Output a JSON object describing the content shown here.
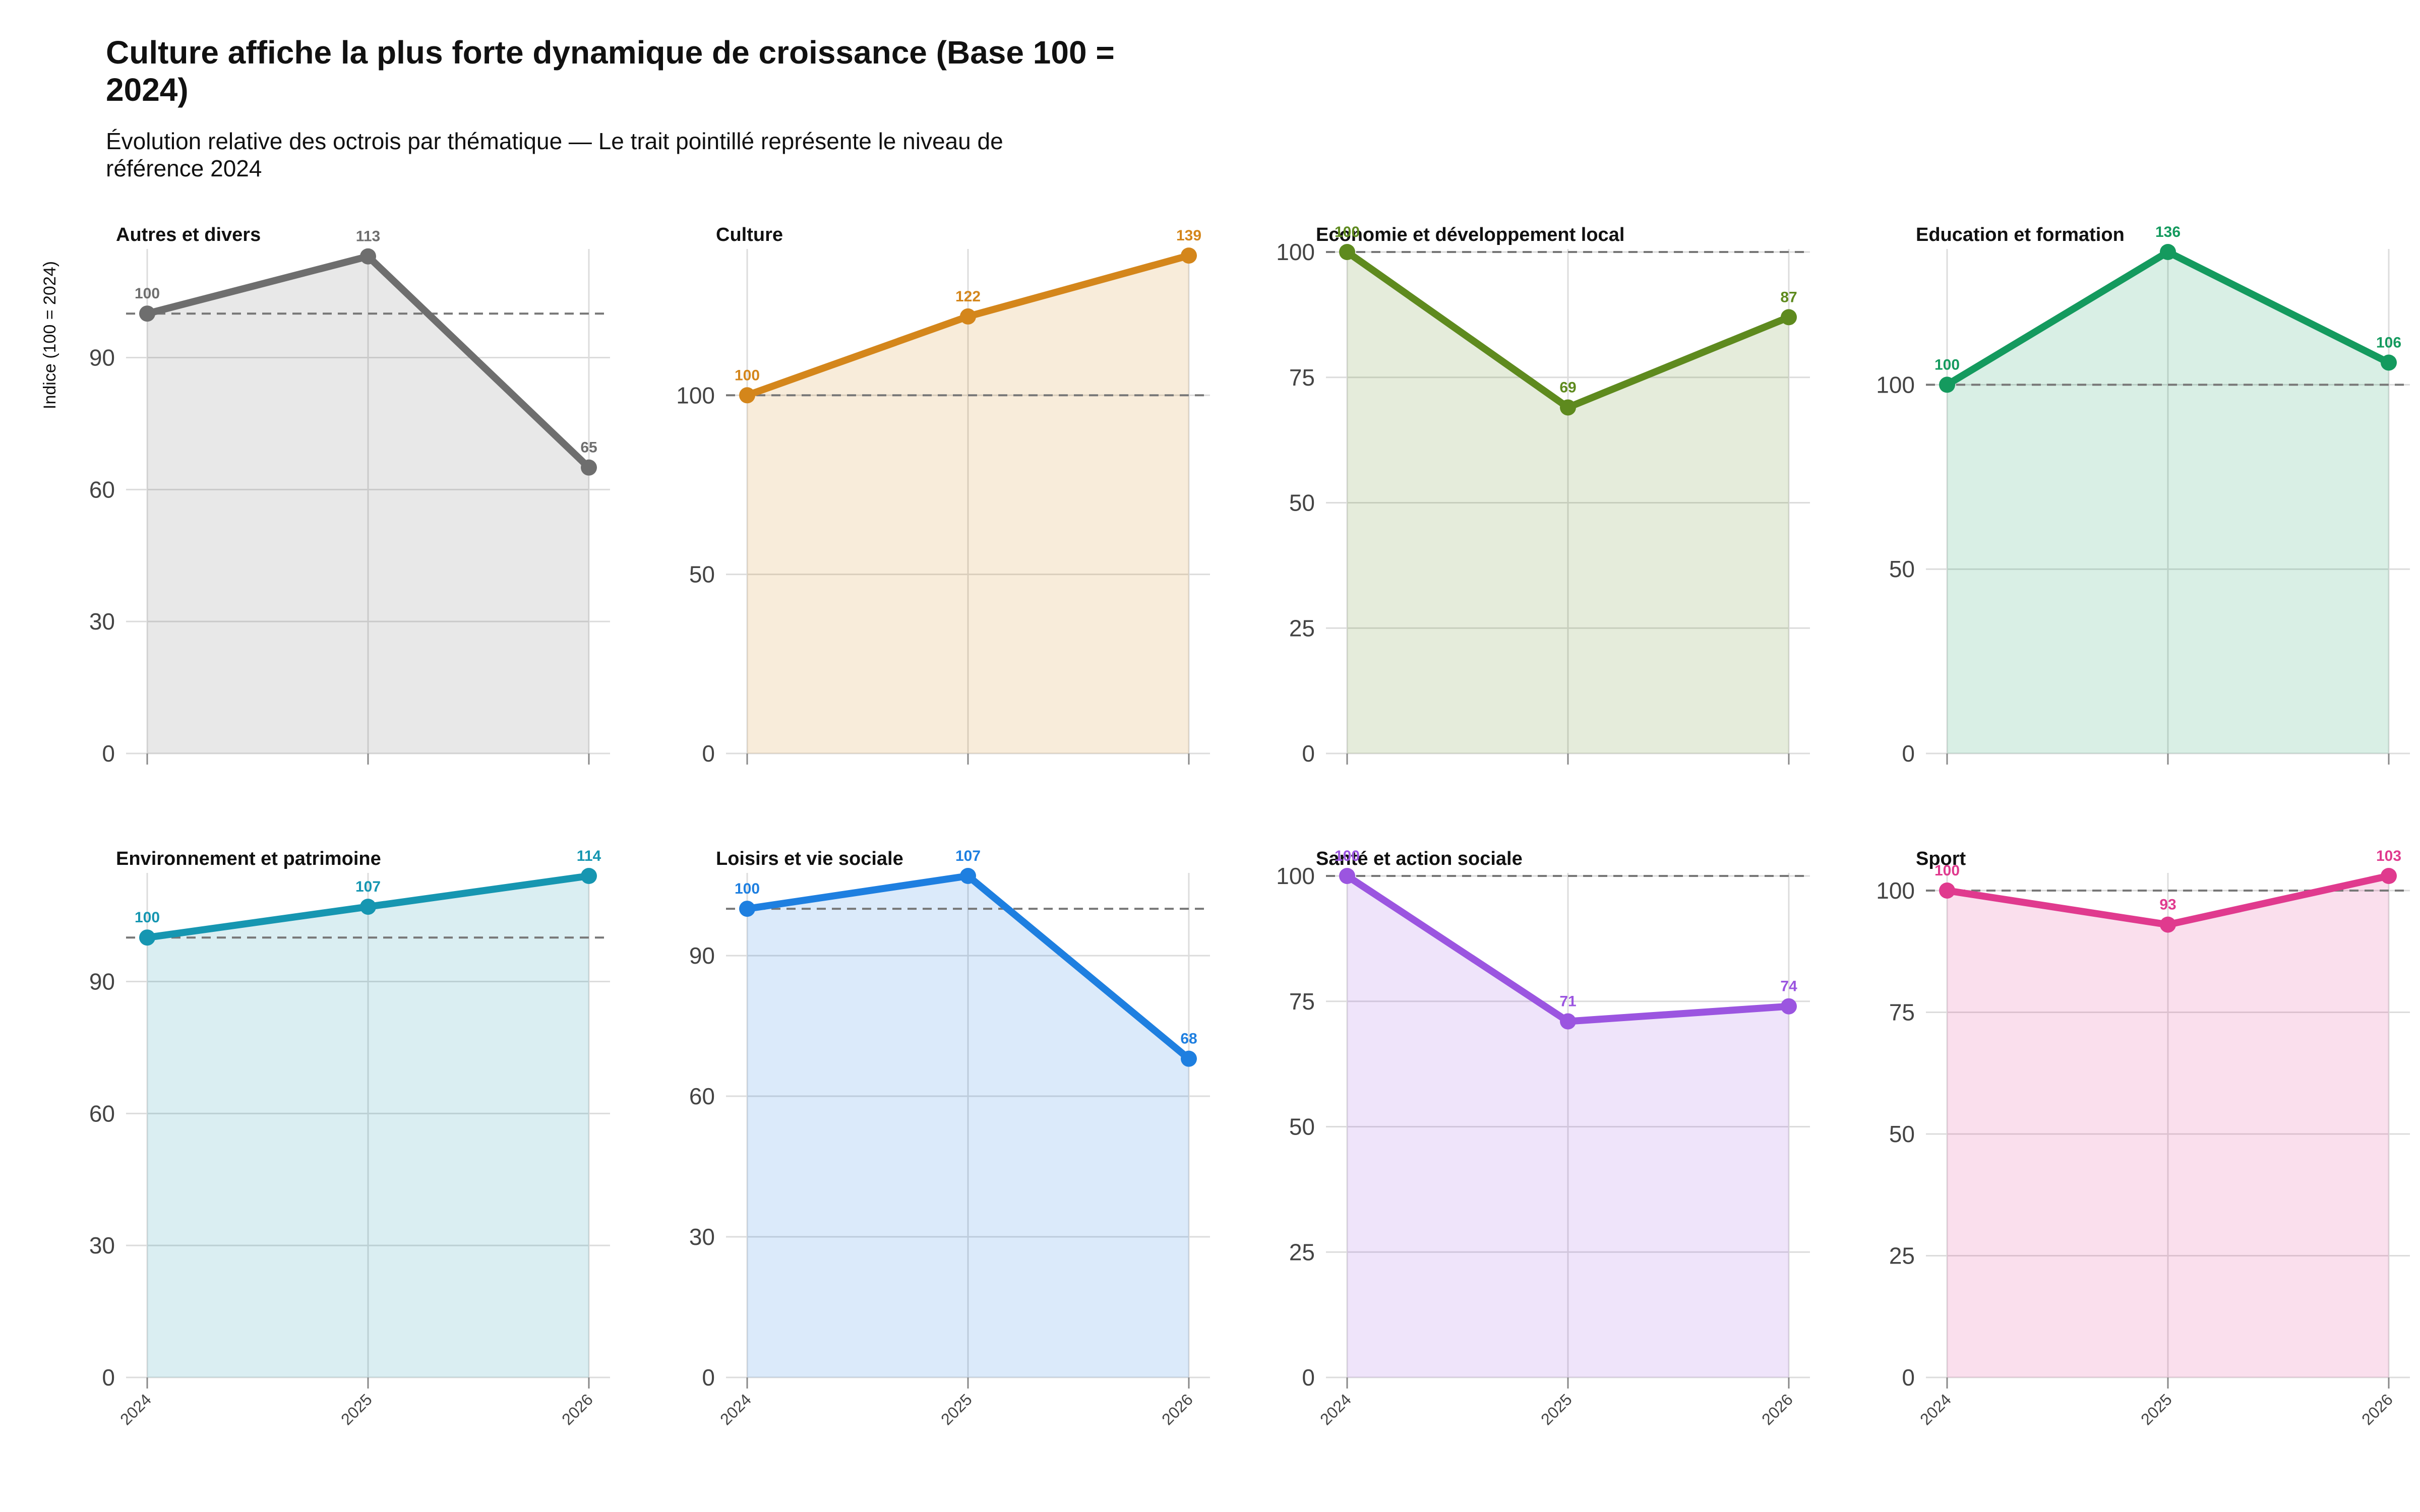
{
  "chart_data": {
    "type": "line",
    "layout": "small-multiples",
    "title": "Culture affiche la plus forte dynamique de croissance (Base 100 = 2024)",
    "title_lines": [
      "Culture affiche la plus forte dynamique de croissance (Base 100 =",
      "2024)"
    ],
    "subtitle": "Évolution relative des octrois par thématique — Le trait pointillé représente le niveau de référence 2024",
    "subtitle_lines": [
      "Évolution relative des octrois par thématique — Le trait pointillé représente le niveau de",
      "référence 2024"
    ],
    "ylabel": "Indice (100 = 2024)",
    "x": [
      "2024",
      "2025",
      "2026"
    ],
    "reference_line": 100,
    "panels": [
      {
        "name": "Autres et divers",
        "color": "#6e6e6e",
        "values": [
          100,
          113,
          65
        ],
        "ylim": [
          0,
          114
        ],
        "yticks": [
          0,
          30,
          60,
          90
        ]
      },
      {
        "name": "Culture",
        "color": "#d4861b",
        "values": [
          100,
          122,
          139
        ],
        "ylim": [
          0,
          140
        ],
        "yticks": [
          0,
          50,
          100
        ]
      },
      {
        "name": "Economie et développement local",
        "color": "#5e8a1e",
        "values": [
          100,
          69,
          87
        ],
        "ylim": [
          0,
          100
        ],
        "yticks": [
          0,
          25,
          50,
          75,
          100
        ]
      },
      {
        "name": "Education et formation",
        "color": "#149a5e",
        "values": [
          100,
          136,
          106
        ],
        "ylim": [
          0,
          136
        ],
        "yticks": [
          0,
          50,
          100
        ]
      },
      {
        "name": "Environnement et patrimoine",
        "color": "#1696b1",
        "values": [
          100,
          107,
          114
        ],
        "ylim": [
          0,
          114
        ],
        "yticks": [
          0,
          30,
          60,
          90
        ]
      },
      {
        "name": "Loisirs et vie sociale",
        "color": "#1e7fe0",
        "values": [
          100,
          107,
          68
        ],
        "ylim": [
          0,
          107
        ],
        "yticks": [
          0,
          30,
          60,
          90
        ]
      },
      {
        "name": "Santé et action sociale",
        "color": "#9b55e0",
        "values": [
          100,
          71,
          74
        ],
        "ylim": [
          0,
          100
        ],
        "yticks": [
          0,
          25,
          50,
          75,
          100
        ]
      },
      {
        "name": "Sport",
        "color": "#e03a8e",
        "values": [
          100,
          93,
          103
        ],
        "ylim": [
          0,
          103
        ],
        "yticks": [
          0,
          25,
          50,
          75,
          100
        ]
      }
    ]
  }
}
